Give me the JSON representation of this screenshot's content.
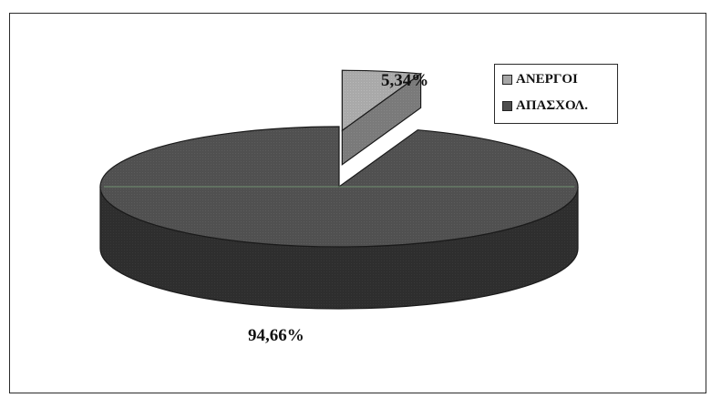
{
  "chart_data": {
    "type": "pie",
    "title": "",
    "slices": [
      {
        "label": "ΑΝΕΡΓΟΙ",
        "value": 5.34,
        "data_label": "5,34%",
        "color": "#a6a6a6"
      },
      {
        "label": "ΑΠΑΣΧΟΛ.",
        "value": 94.66,
        "data_label": "94,66%",
        "color": "#4d4d4d"
      }
    ],
    "legend_placement": "top-right",
    "style": "3d-exploded"
  }
}
